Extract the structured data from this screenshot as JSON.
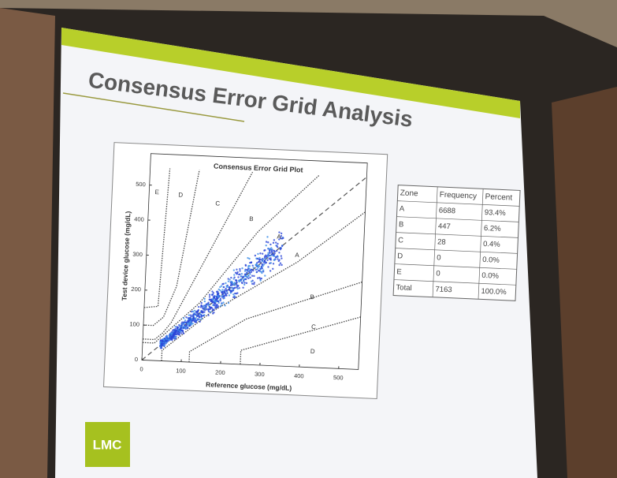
{
  "slide": {
    "title": "Consensus Error Grid Analysis",
    "logo": "LMC"
  },
  "plot": {
    "title": "Consensus Error Grid Plot",
    "x_label": "Reference glucose (mg/dL)",
    "y_label": "Test device glucose (mg/dL)",
    "xticks": [
      0,
      100,
      200,
      300,
      400,
      500
    ],
    "yticks": [
      0,
      100,
      200,
      300,
      400,
      500
    ],
    "zone_labels": [
      "E",
      "D",
      "C",
      "B",
      "A",
      "A",
      "B",
      "C",
      "D"
    ]
  },
  "table": {
    "header": [
      "Zone",
      "Frequency",
      "Percent"
    ],
    "rows": [
      [
        "A",
        "6688",
        "93.4%"
      ],
      [
        "B",
        "447",
        "6.2%"
      ],
      [
        "C",
        "28",
        "0.4%"
      ],
      [
        "D",
        "0",
        "0.0%"
      ],
      [
        "E",
        "0",
        "0.0%"
      ],
      [
        "Total",
        "7163",
        "100.0%"
      ]
    ]
  }
}
